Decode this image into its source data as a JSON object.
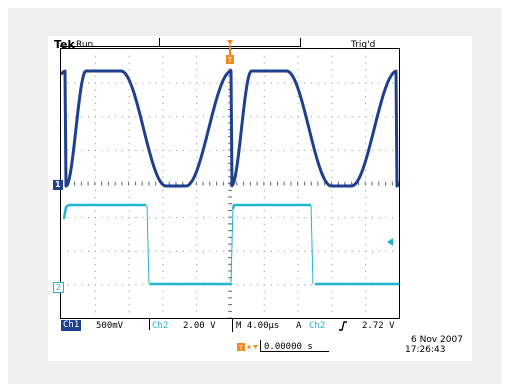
{
  "status": {
    "brand": "Tek",
    "run_state": "Run",
    "trigger_state": "Trig'd"
  },
  "markers": {
    "ch1": "1",
    "ch2": "2",
    "trigger_pos": "T"
  },
  "readouts": {
    "ch1_label": "Ch1",
    "ch1_scale": "500mV",
    "ch2_label": "Ch2",
    "ch2_scale": "2.00 V",
    "timebase": "M 4.00µs",
    "trigger_mode": "A",
    "trigger_source": "Ch2",
    "trigger_slope": "∂",
    "trigger_level": "2.72 V",
    "position": "0.00000 s",
    "date": "6 Nov 2007",
    "time": "17:26:43"
  },
  "colors": {
    "ch1": "#1f3f8f",
    "ch2": "#22b5cf",
    "ch1_badge_bg": "#1f3f8f",
    "trigger_marker": "#f08a1c"
  }
}
